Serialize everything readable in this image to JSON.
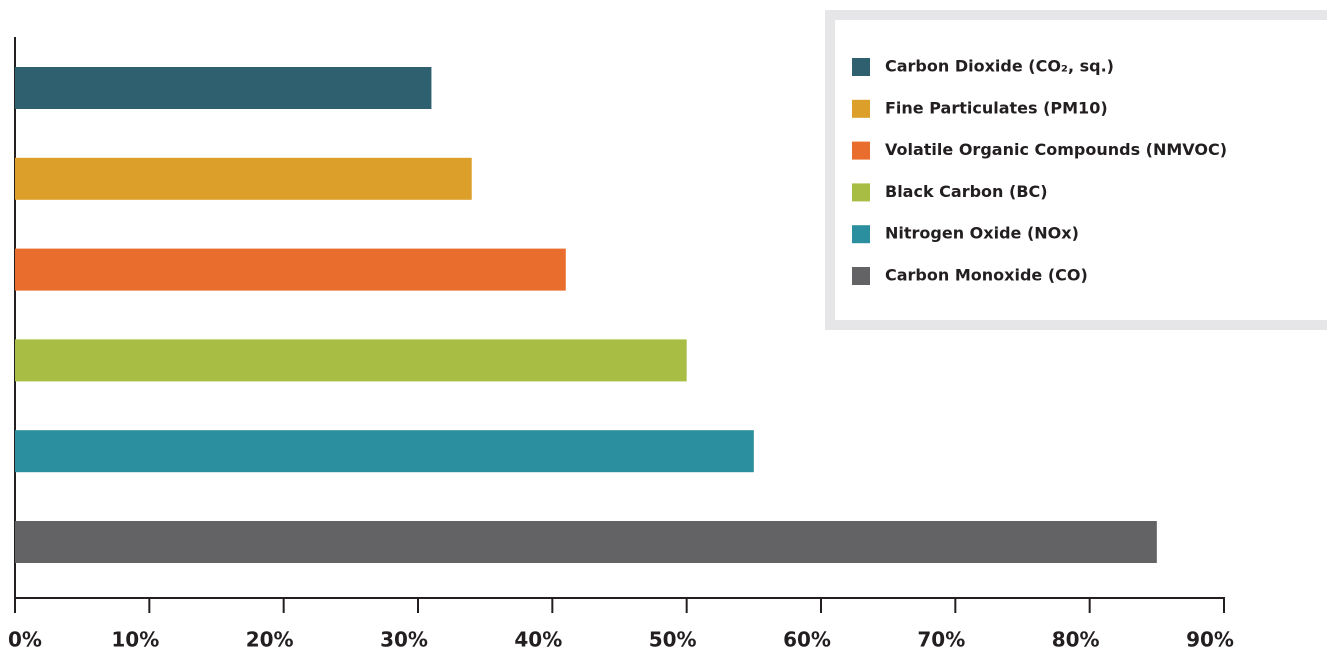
{
  "chart_data": {
    "type": "bar",
    "orientation": "horizontal",
    "series": [
      {
        "name": "Carbon Dioxide (CO₂, sq.)",
        "color": "#2e6070",
        "values": [
          31
        ]
      },
      {
        "name": "Fine Particulates (PM10)",
        "color": "#dca02a",
        "values": [
          34
        ]
      },
      {
        "name": "Volatile Organic Compounds (NMVOC)",
        "color": "#e96d2c",
        "values": [
          41
        ]
      },
      {
        "name": "Black Carbon (BC)",
        "color": "#a7bd44",
        "values": [
          50
        ]
      },
      {
        "name": "Nitrogen Oxide (NOx)",
        "color": "#2b8fa0",
        "values": [
          55
        ]
      },
      {
        "name": "Carbon Monoxide (CO)",
        "color": "#636365",
        "values": [
          85
        ]
      }
    ],
    "xlim": [
      0,
      90
    ],
    "xticks": [
      {
        "value": 0,
        "label": "0%"
      },
      {
        "value": 10,
        "label": "10%"
      },
      {
        "value": 20,
        "label": "20%"
      },
      {
        "value": 30,
        "label": "30%"
      },
      {
        "value": 40,
        "label": "40%"
      },
      {
        "value": 50,
        "label": "50%"
      },
      {
        "value": 60,
        "label": "60%"
      },
      {
        "value": 70,
        "label": "70%"
      },
      {
        "value": 80,
        "label": "80%"
      },
      {
        "value": 90,
        "label": "90%"
      }
    ],
    "legend": "top-right"
  }
}
